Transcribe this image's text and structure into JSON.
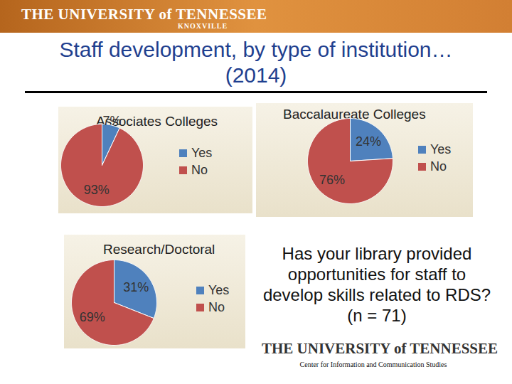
{
  "header": {
    "university": "THE UNIVERSITY of TENNESSEE",
    "campus": "KNOXVILLE"
  },
  "title": "Staff development, by type of institution…(2014)",
  "question": "Has your library provided opportunities for staff to develop skills related to RDS? (n = 71)",
  "footer": {
    "university": "THE UNIVERSITY of TENNESSEE",
    "center": "Center for Information and Communication Studies"
  },
  "chart_data": [
    {
      "type": "pie",
      "title": "Associates Colleges",
      "categories": [
        "Yes",
        "No"
      ],
      "values": [
        7,
        93
      ],
      "colors": [
        "#4f81bd",
        "#c0504d"
      ],
      "data_labels": true,
      "value_labels": [
        "7%",
        "93%"
      ],
      "legend": "right"
    },
    {
      "type": "pie",
      "title": "Baccalaureate Colleges",
      "categories": [
        "Yes",
        "No"
      ],
      "values": [
        24,
        76
      ],
      "colors": [
        "#4f81bd",
        "#c0504d"
      ],
      "data_labels": true,
      "value_labels": [
        "24%",
        "76%"
      ],
      "legend": "right"
    },
    {
      "type": "pie",
      "title": "Research/Doctoral",
      "categories": [
        "Yes",
        "No"
      ],
      "values": [
        31,
        69
      ],
      "colors": [
        "#4f81bd",
        "#c0504d"
      ],
      "data_labels": true,
      "value_labels": [
        "31%",
        "69%"
      ],
      "legend": "right"
    }
  ]
}
